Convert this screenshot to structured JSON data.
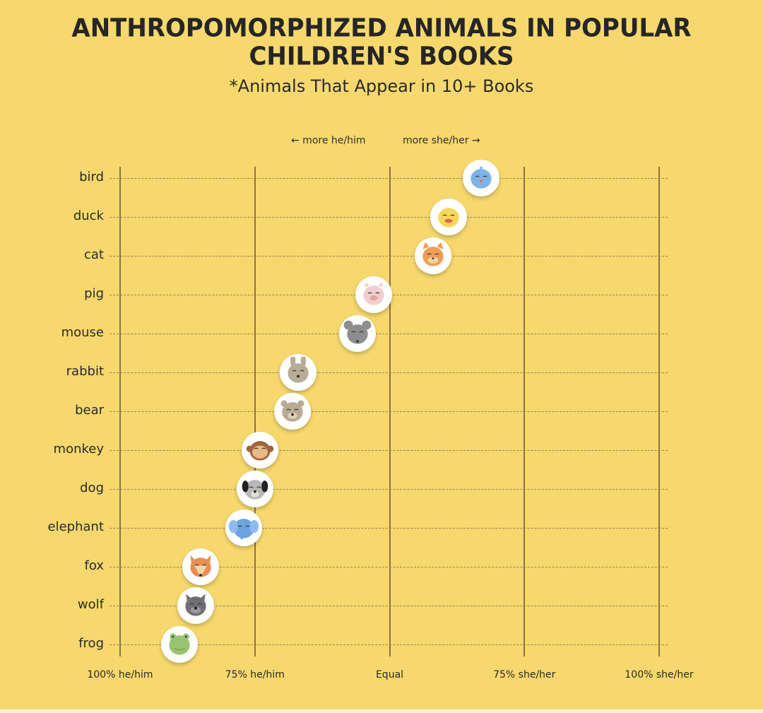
{
  "title_line1": "Anthropomorphized Animals in Popular",
  "title_line2": "Children's Books",
  "subtitle": "*Animals That Appear in 10+ Books",
  "direction_labels": {
    "left": "← more he/him",
    "right": "more she/her →"
  },
  "chart_data": {
    "type": "scatter",
    "title": "Anthropomorphized Animals in Popular Children's Books",
    "subtitle": "*Animals That Appear in 10+ Books",
    "xlabel": "",
    "ylabel": "",
    "x_axis_meaning": "Share of she/her pronouns (%); 0 = 100% he/him, 50 = Equal, 100 = 100% she/her",
    "xlim": [
      0,
      100
    ],
    "x_ticks": [
      0,
      25,
      50,
      75,
      100
    ],
    "x_tick_labels": [
      "100% he/him",
      "75% he/him",
      "Equal",
      "75% she/her",
      "100% she/her"
    ],
    "annotations": [
      "← more he/him",
      "more she/her →"
    ],
    "grid": {
      "vertical": "solid at ticks",
      "horizontal": "dashed per category"
    },
    "legend": null,
    "categories": [
      "bird",
      "duck",
      "cat",
      "pig",
      "mouse",
      "rabbit",
      "bear",
      "monkey",
      "dog",
      "elephant",
      "fox",
      "wolf",
      "frog"
    ],
    "values": [
      67,
      61,
      58,
      47,
      44,
      33,
      32,
      26,
      25,
      23,
      15,
      14,
      11
    ],
    "marker": "animal face icon per category"
  },
  "rows": [
    {
      "label": "bird",
      "value": 67,
      "icon": "bird-face-icon",
      "color": "#7fb3e6"
    },
    {
      "label": "duck",
      "value": 61,
      "icon": "duck-face-icon",
      "color": "#f5d75a"
    },
    {
      "label": "cat",
      "value": 58,
      "icon": "cat-face-icon",
      "color": "#ef9d55"
    },
    {
      "label": "pig",
      "value": 47,
      "icon": "pig-face-icon",
      "color": "#f2cfcf"
    },
    {
      "label": "mouse",
      "value": 44,
      "icon": "mouse-face-icon",
      "color": "#8d8d8d"
    },
    {
      "label": "rabbit",
      "value": 33,
      "icon": "rabbit-face-icon",
      "color": "#b9ad97"
    },
    {
      "label": "bear",
      "value": 32,
      "icon": "bear-face-icon",
      "color": "#b7ab93"
    },
    {
      "label": "monkey",
      "value": 26,
      "icon": "monkey-face-icon",
      "color": "#a0633b"
    },
    {
      "label": "dog",
      "value": 25,
      "icon": "dog-face-icon",
      "color": "#b8b8b8"
    },
    {
      "label": "elephant",
      "value": 23,
      "icon": "elephant-face-icon",
      "color": "#6fa3e0"
    },
    {
      "label": "fox",
      "value": 15,
      "icon": "fox-face-icon",
      "color": "#e98d52"
    },
    {
      "label": "wolf",
      "value": 14,
      "icon": "wolf-face-icon",
      "color": "#6f6f74"
    },
    {
      "label": "frog",
      "value": 11,
      "icon": "frog-face-icon",
      "color": "#97c46f"
    }
  ],
  "colors": {
    "background": "#f6d86e",
    "gridline": "#8a7440",
    "text": "#2a2a2a"
  }
}
